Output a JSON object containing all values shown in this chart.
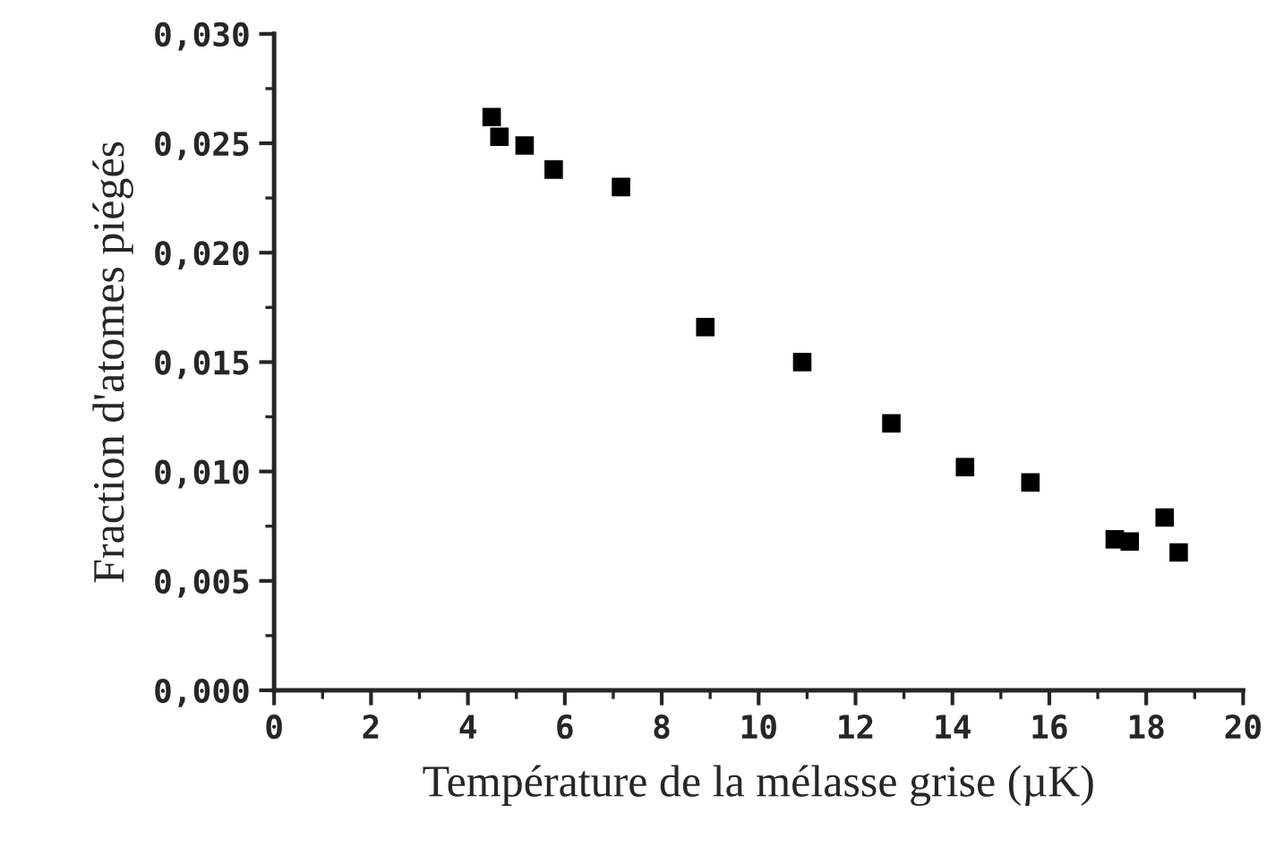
{
  "chart_data": {
    "type": "scatter",
    "xlabel": "Température de la mélasse grise (µK)",
    "ylabel": "Fraction d'atomes piégés",
    "x": [
      4.49,
      4.65,
      5.17,
      5.77,
      7.16,
      8.9,
      10.9,
      12.74,
      14.26,
      15.61,
      17.35,
      17.66,
      18.38,
      18.67
    ],
    "series": [
      {
        "color": "#000000",
        "values": [
          0.0262,
          0.0253,
          0.0249,
          0.0238,
          0.023,
          0.0166,
          0.015,
          0.0122,
          0.0102,
          0.0095,
          0.0069,
          0.0068,
          0.0079,
          0.0063
        ]
      }
    ],
    "marker": "square",
    "xlim": [
      0,
      20
    ],
    "xticks": [
      0,
      2,
      4,
      6,
      8,
      10,
      12,
      14,
      16,
      18,
      20
    ],
    "ylim": [
      0,
      0.03
    ],
    "yticks": [
      {
        "value": 0,
        "label": "0,000"
      },
      {
        "value": 0.005,
        "label": "0,005"
      },
      {
        "value": 0.01,
        "label": "0,010"
      },
      {
        "value": 0.015,
        "label": "0,015"
      },
      {
        "value": 0.02,
        "label": "0,020"
      },
      {
        "value": 0.025,
        "label": "0,025"
      },
      {
        "value": 0.03,
        "label": "0,030"
      }
    ],
    "grid": false,
    "legend": false
  }
}
